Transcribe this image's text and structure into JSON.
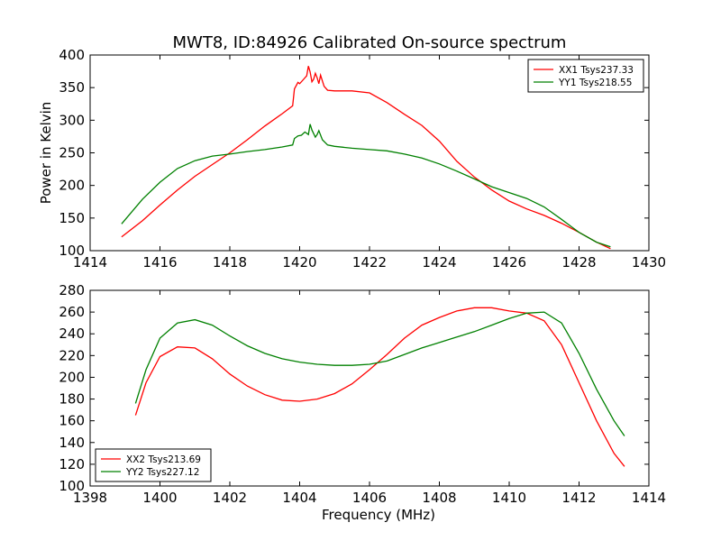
{
  "figure": {
    "title": "MWT8, ID:84926 Calibrated On-source spectrum"
  },
  "chart_data": [
    {
      "type": "line",
      "xlabel": "",
      "ylabel": "Power in Kelvin",
      "xlim": [
        1414,
        1430
      ],
      "ylim": [
        100,
        400
      ],
      "xticks": [
        "1414",
        "1416",
        "1418",
        "1420",
        "1422",
        "1424",
        "1426",
        "1428",
        "1430"
      ],
      "yticks": [
        "100",
        "150",
        "200",
        "250",
        "300",
        "350",
        "400"
      ],
      "grid": false,
      "legend_position": "top-right",
      "series": [
        {
          "name": "XX1 Tsys237.33",
          "color": "#ff0000",
          "x": [
            1414.9,
            1415.5,
            1416.0,
            1416.5,
            1417.0,
            1417.5,
            1418.0,
            1418.5,
            1419.0,
            1419.5,
            1419.8,
            1419.85,
            1419.95,
            1420.0,
            1420.1,
            1420.2,
            1420.25,
            1420.3,
            1420.35,
            1420.4,
            1420.45,
            1420.5,
            1420.55,
            1420.6,
            1420.7,
            1420.8,
            1421.0,
            1421.5,
            1422.0,
            1422.5,
            1423.0,
            1423.5,
            1424.0,
            1424.5,
            1425.0,
            1425.5,
            1426.0,
            1426.5,
            1427.0,
            1427.5,
            1428.0,
            1428.5,
            1428.9
          ],
          "y": [
            121,
            146,
            170,
            193,
            214,
            232,
            250,
            270,
            291,
            310,
            322,
            348,
            358,
            356,
            362,
            368,
            383,
            374,
            359,
            363,
            372,
            365,
            356,
            369,
            352,
            346,
            345,
            345,
            342,
            327,
            309,
            292,
            268,
            237,
            213,
            193,
            176,
            164,
            154,
            142,
            128,
            113,
            103
          ]
        },
        {
          "name": "YY1 Tsys218.55",
          "color": "#008000",
          "x": [
            1414.9,
            1415.5,
            1416.0,
            1416.5,
            1417.0,
            1417.5,
            1418.0,
            1418.5,
            1419.0,
            1419.5,
            1419.8,
            1419.85,
            1419.95,
            1420.05,
            1420.15,
            1420.25,
            1420.3,
            1420.35,
            1420.45,
            1420.5,
            1420.55,
            1420.65,
            1420.8,
            1421.0,
            1421.5,
            1422.0,
            1422.5,
            1423.0,
            1423.5,
            1424.0,
            1424.5,
            1425.0,
            1425.5,
            1426.0,
            1426.5,
            1427.0,
            1427.5,
            1428.0,
            1428.5,
            1428.9
          ],
          "y": [
            141,
            179,
            205,
            226,
            238,
            245,
            248,
            252,
            255,
            259,
            262,
            272,
            276,
            277,
            282,
            278,
            294,
            285,
            274,
            278,
            284,
            270,
            262,
            260,
            257,
            255,
            253,
            248,
            242,
            233,
            222,
            210,
            198,
            189,
            180,
            167,
            148,
            128,
            113,
            106
          ]
        }
      ]
    },
    {
      "type": "line",
      "xlabel": "Frequency (MHz)",
      "ylabel": "",
      "xlim": [
        1398,
        1414
      ],
      "ylim": [
        100,
        280
      ],
      "xticks": [
        "1398",
        "1400",
        "1402",
        "1404",
        "1406",
        "1408",
        "1410",
        "1412",
        "1414"
      ],
      "yticks": [
        "100",
        "120",
        "140",
        "160",
        "180",
        "200",
        "220",
        "240",
        "260",
        "280"
      ],
      "grid": false,
      "legend_position": "bottom-left",
      "series": [
        {
          "name": "XX2 Tsys213.69",
          "color": "#ff0000",
          "x": [
            1399.3,
            1399.6,
            1400.0,
            1400.5,
            1401.0,
            1401.5,
            1402.0,
            1402.5,
            1403.0,
            1403.5,
            1404.0,
            1404.5,
            1405.0,
            1405.5,
            1406.0,
            1406.5,
            1407.0,
            1407.5,
            1408.0,
            1408.5,
            1409.0,
            1409.5,
            1410.0,
            1410.5,
            1411.0,
            1411.5,
            1412.0,
            1412.5,
            1413.0,
            1413.3
          ],
          "y": [
            165,
            195,
            219,
            228,
            227,
            217,
            203,
            192,
            184,
            179,
            178,
            180,
            185,
            194,
            207,
            221,
            236,
            248,
            255,
            261,
            264,
            264,
            261,
            259,
            252,
            230,
            195,
            160,
            130,
            118
          ]
        },
        {
          "name": "YY2 Tsys227.12",
          "color": "#008000",
          "x": [
            1399.3,
            1399.6,
            1400.0,
            1400.5,
            1401.0,
            1401.5,
            1402.0,
            1402.5,
            1403.0,
            1403.5,
            1404.0,
            1404.5,
            1405.0,
            1405.5,
            1406.0,
            1406.5,
            1407.0,
            1407.5,
            1408.0,
            1408.5,
            1409.0,
            1409.5,
            1410.0,
            1410.5,
            1411.0,
            1411.5,
            1412.0,
            1412.5,
            1413.0,
            1413.3
          ],
          "y": [
            176,
            207,
            236,
            250,
            253,
            248,
            238,
            229,
            222,
            217,
            214,
            212,
            211,
            211,
            212,
            215,
            221,
            227,
            232,
            237,
            242,
            248,
            254,
            259,
            260,
            250,
            222,
            189,
            160,
            146
          ]
        }
      ]
    }
  ]
}
